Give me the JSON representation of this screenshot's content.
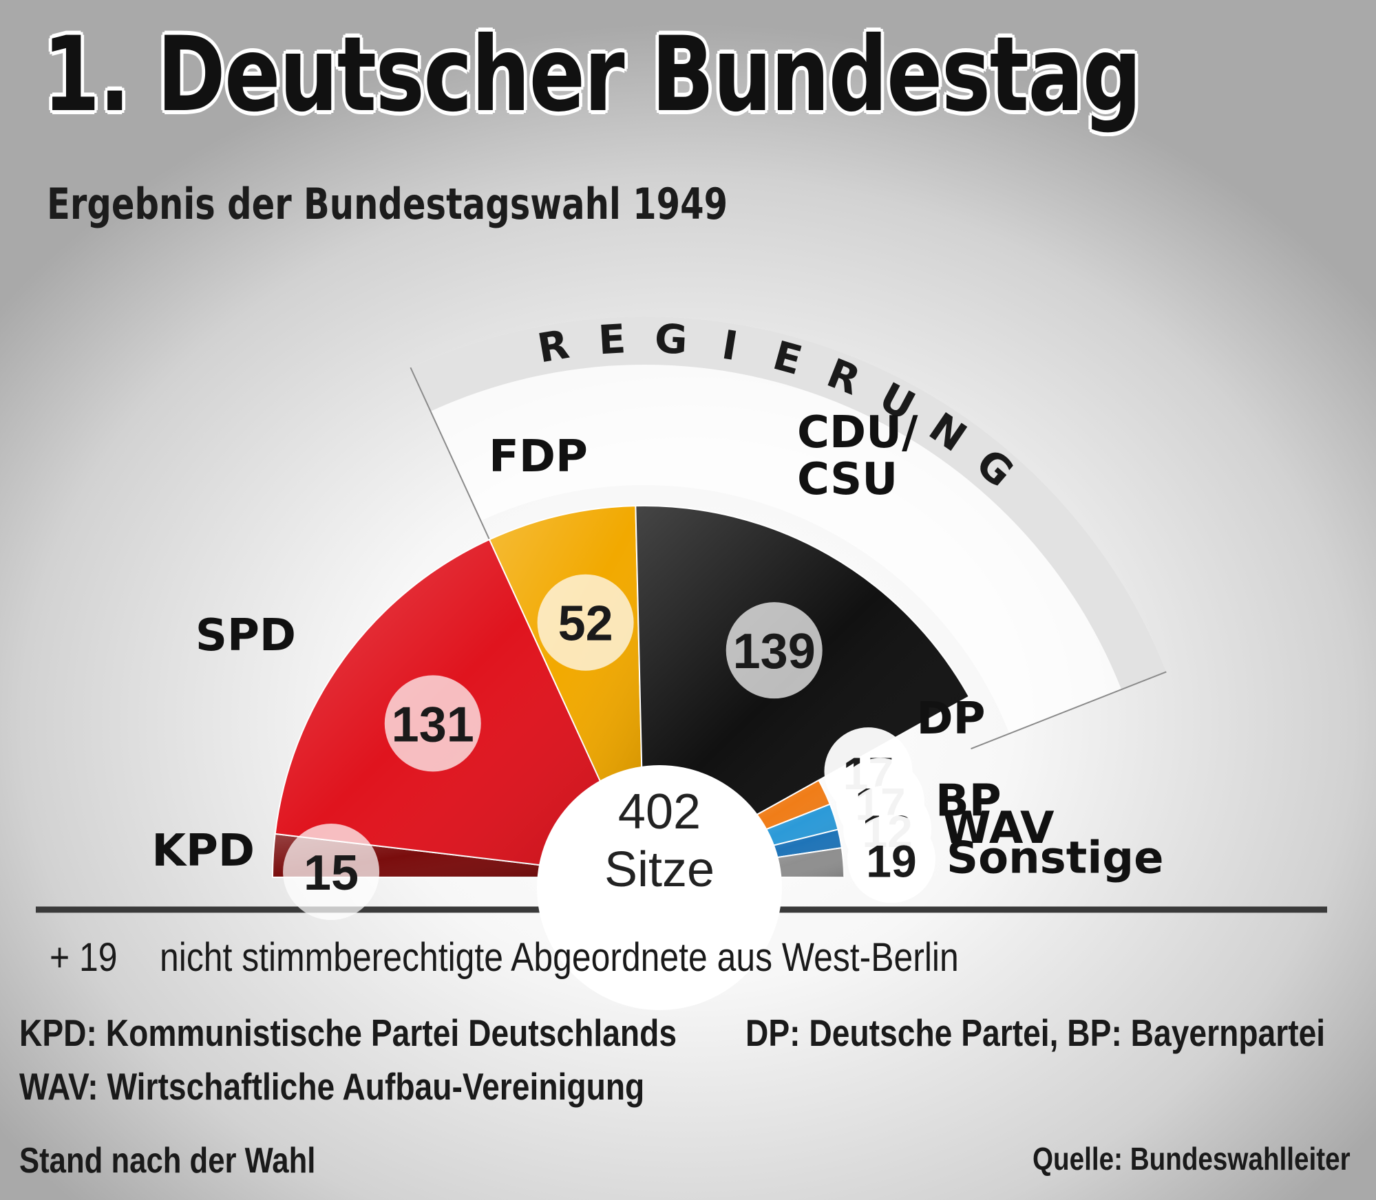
{
  "title": "1. Deutscher Bundestag",
  "subtitle": "Ergebnis der Bundestagswahl 1949",
  "chart_data": {
    "type": "parliament-semicircle",
    "total": 402,
    "total_label_number": "402",
    "total_label_unit": "Sitze",
    "government_label": "REGIERUNG",
    "government_parties": [
      "FDP",
      "CDU/CSU",
      "DP"
    ],
    "parties": [
      {
        "name": "KPD",
        "label_lines": [
          "KPD"
        ],
        "seats": 15,
        "color": "#7a0d0d"
      },
      {
        "name": "SPD",
        "label_lines": [
          "SPD"
        ],
        "seats": 131,
        "color": "#e0141e"
      },
      {
        "name": "FDP",
        "label_lines": [
          "FDP"
        ],
        "seats": 52,
        "color": "#f2a900"
      },
      {
        "name": "CDU/CSU",
        "label_lines": [
          "CDU/",
          "CSU"
        ],
        "seats": 139,
        "color": "#111111"
      },
      {
        "name": "DP",
        "label_lines": [
          "DP"
        ],
        "seats": 17,
        "color": "#f07d18"
      },
      {
        "name": "BP",
        "label_lines": [
          "BP"
        ],
        "seats": 17,
        "color": "#2c9ad8"
      },
      {
        "name": "WAV",
        "label_lines": [
          "WAV"
        ],
        "seats": 12,
        "color": "#1f74b8"
      },
      {
        "name": "Sonstige",
        "label_lines": [
          "Sonstige"
        ],
        "seats": 19,
        "color": "#8f8f8f"
      }
    ]
  },
  "note": {
    "prefix": "+ 19",
    "text": "nicht stimmberechtigte Abgeordnete aus West-Berlin"
  },
  "footnotes": {
    "kpd": "KPD: Kommunistische Partei Deutschlands",
    "dp_bp": "DP: Deutsche Partei, BP: Bayernpartei",
    "wav": "WAV: Wirtschaftliche Aufbau-Vereinigung"
  },
  "status": "Stand nach der Wahl",
  "source": "Quelle: Bundeswahlleiter"
}
